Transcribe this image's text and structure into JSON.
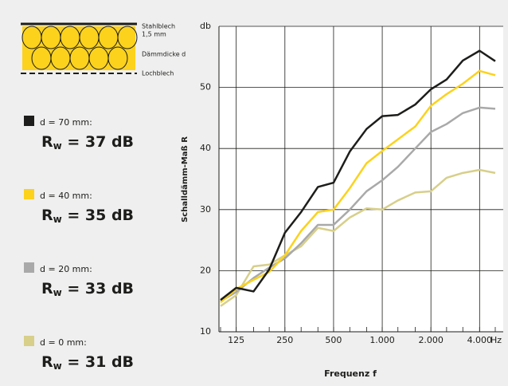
{
  "diagram": {
    "labels": [
      "Stahlblech",
      "1,5 mm",
      "Dämmdicke d",
      "Lochblech"
    ]
  },
  "chart_data": {
    "type": "line",
    "y_label": "Schalldämm-Maß R",
    "x_label": "Frequenz  f",
    "x_unit": "Hz",
    "x": [
      100,
      125,
      160,
      200,
      250,
      315,
      400,
      500,
      630,
      800,
      1000,
      1250,
      1600,
      2000,
      2500,
      3150,
      4000,
      5000
    ],
    "xlim": [
      100,
      5000
    ],
    "log_x": true,
    "xticks": [
      125,
      250,
      500,
      {
        "value": 1000,
        "label": "1.000"
      },
      {
        "value": 2000,
        "label": "2.000"
      },
      {
        "value": 4000,
        "label": "4.000"
      }
    ],
    "ylim": [
      10,
      60
    ],
    "yticks": [
      10,
      20,
      30,
      40,
      50,
      {
        "value": 60,
        "label": "db"
      }
    ],
    "grid": true,
    "series": [
      {
        "name": "d = 70 mm:",
        "rating": [
          "R",
          "w",
          " = 37 dB"
        ],
        "color": "#1d1d1b",
        "values": [
          15.2,
          17.2,
          16.6,
          20.2,
          26.2,
          29.6,
          33.7,
          34.4,
          39.5,
          43.2,
          45.3,
          45.5,
          47.2,
          49.7,
          51.3,
          54.4,
          56,
          54.3
        ]
      },
      {
        "name": "d = 40 mm:",
        "rating": [
          "R",
          "w",
          " = 35 dB"
        ],
        "color": "#fcd21c",
        "values": [
          14.8,
          17,
          18.5,
          19.8,
          22.5,
          26.5,
          29.6,
          30,
          33.5,
          37.6,
          39.6,
          41.5,
          43.6,
          47,
          48.9,
          50.6,
          52.7,
          52
        ]
      },
      {
        "name": "d = 20 mm:",
        "rating": [
          "R",
          "w",
          " = 33 dB"
        ],
        "color": "#a9a9a9",
        "values": [
          15,
          16.5,
          18.8,
          20.5,
          22,
          24.5,
          27.5,
          27.5,
          30,
          33,
          34.8,
          37,
          40,
          42.7,
          44,
          45.8,
          46.7,
          46.5
        ]
      },
      {
        "name": "d = 0 mm:",
        "rating": [
          "R",
          "w",
          " = 31 dB"
        ],
        "color": "#d7cf8a",
        "values": [
          14.2,
          16,
          20.7,
          21,
          22.5,
          24,
          27,
          26.5,
          28.7,
          30.2,
          30,
          31.5,
          32.8,
          33,
          35.2,
          36,
          36.5,
          36
        ]
      }
    ]
  }
}
